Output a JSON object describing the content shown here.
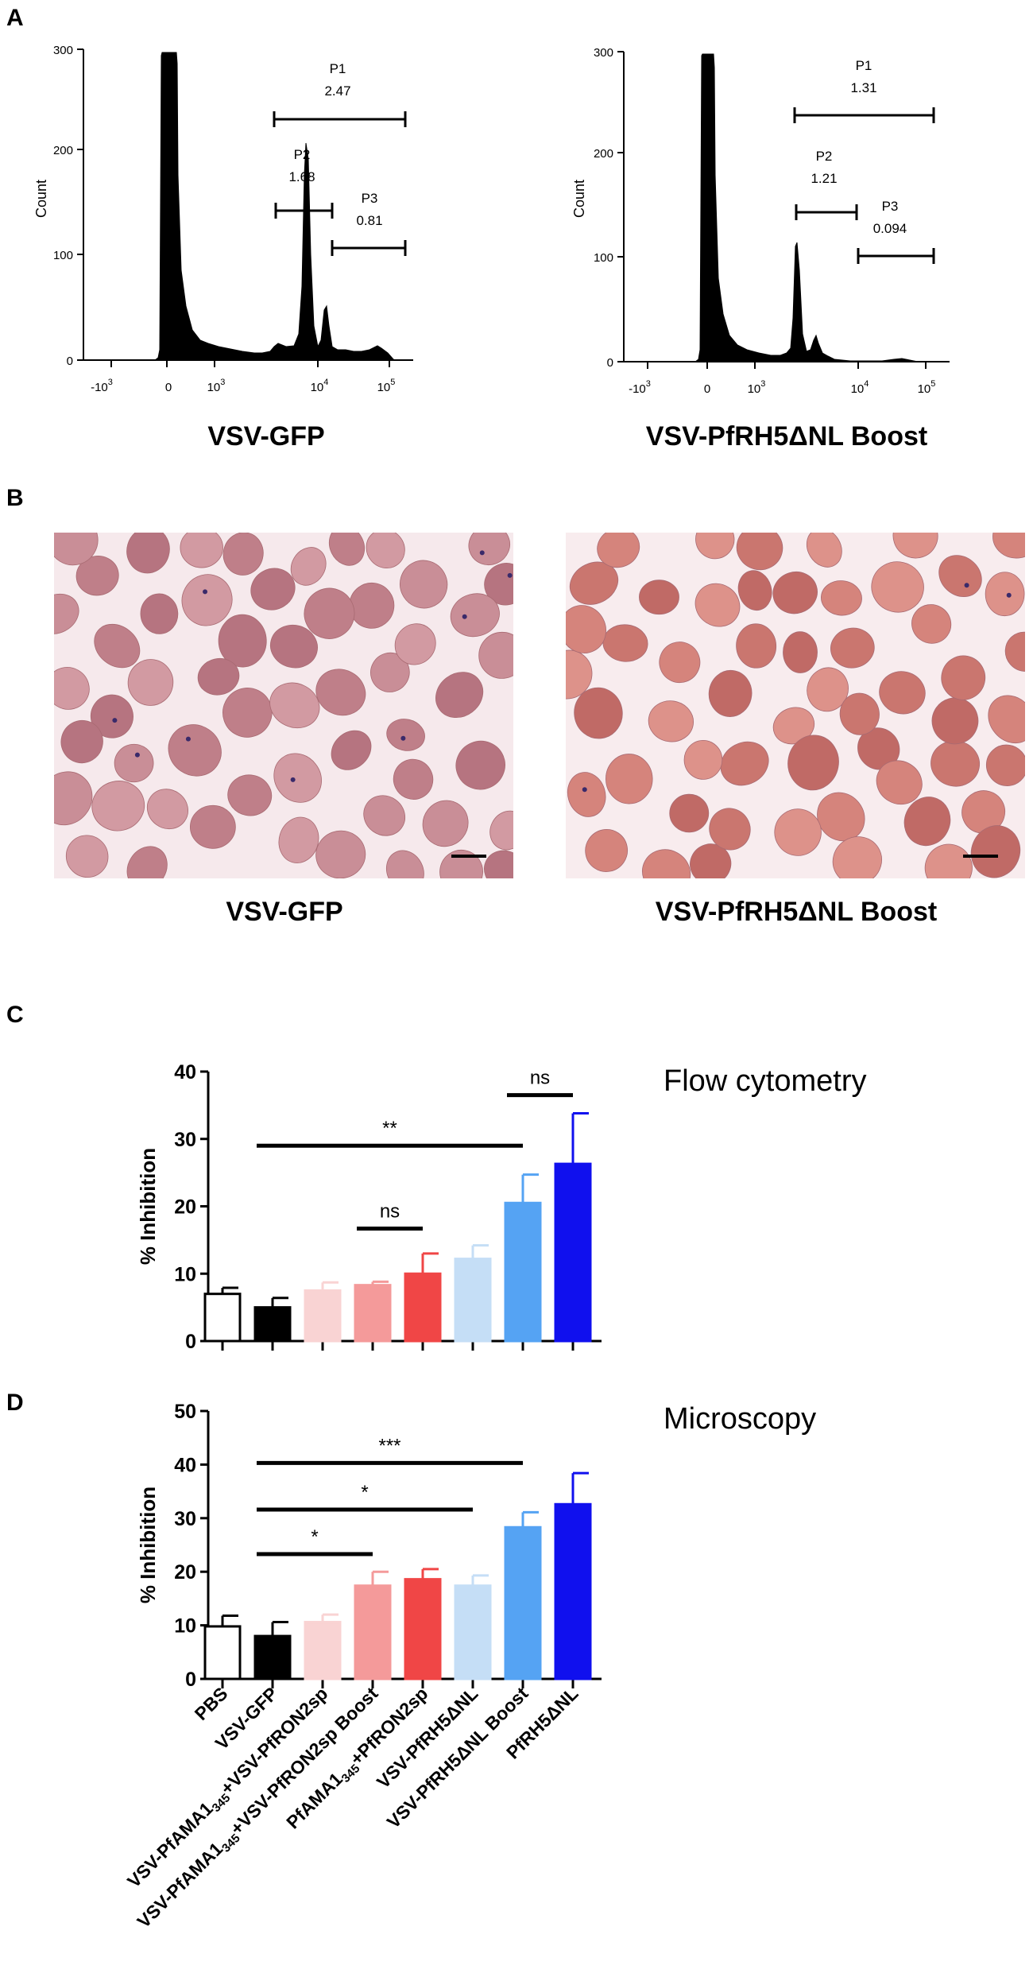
{
  "panels": {
    "A": {
      "letter": "A",
      "histograms": [
        {
          "caption": "VSV-GFP",
          "ylabel": "Count",
          "yticks": [
            "300",
            "200",
            "100",
            "0"
          ],
          "xticks": [
            "-10",
            "0",
            "10",
            "10",
            "10"
          ],
          "xtick_exps": [
            "3",
            "",
            "3",
            "4",
            "5"
          ],
          "gates": [
            {
              "name": "P1",
              "value": "2.47"
            },
            {
              "name": "P2",
              "value": "1.68"
            },
            {
              "name": "P3",
              "value": "0.81"
            }
          ]
        },
        {
          "caption": "VSV-PfRH5ΔNL Boost",
          "ylabel": "Count",
          "yticks": [
            "300",
            "200",
            "100",
            "0"
          ],
          "xticks": [
            "-10",
            "0",
            "10",
            "10",
            "10"
          ],
          "xtick_exps": [
            "3",
            "",
            "3",
            "4",
            "5"
          ],
          "gates": [
            {
              "name": "P1",
              "value": "1.31"
            },
            {
              "name": "P2",
              "value": "1.21"
            },
            {
              "name": "P3",
              "value": "0.094"
            }
          ]
        }
      ]
    },
    "B": {
      "letter": "B",
      "captions": [
        "VSV-GFP",
        "VSV-PfRH5ΔNL Boost"
      ]
    },
    "C": {
      "letter": "C"
    },
    "D": {
      "letter": "D"
    }
  },
  "chart_data": [
    {
      "type": "bar",
      "title": "Flow cytometry",
      "ylabel": "% Inhibition",
      "ylim": [
        0,
        40
      ],
      "yticks": [
        0,
        10,
        20,
        30,
        40
      ],
      "categories": [
        "PBS",
        "VSV-GFP",
        "VSV-PfAMA1345+VSV-PfRON2sp",
        "VSV-PfAMA1345+VSV-PfRON2sp Boost",
        "PfAMA1345+PfRON2sp",
        "VSV-PfRH5ΔNL",
        "VSV-PfRH5ΔNL Boost",
        "PfRH5ΔNL"
      ],
      "values": [
        7.0,
        5.0,
        7.5,
        8.3,
        10.0,
        12.2,
        20.5,
        26.3
      ],
      "errors": [
        0.9,
        1.4,
        1.2,
        0.5,
        3.0,
        2.0,
        4.2,
        7.5
      ],
      "colors": [
        "#ffffff",
        "#000000",
        "#f9d3d3",
        "#f49a9a",
        "#f04646",
        "#c5def6",
        "#55a3f3",
        "#1010ee"
      ],
      "significance": [
        {
          "label": "**",
          "from": 1,
          "to": 6,
          "y": 29.0
        },
        {
          "label": "ns",
          "from": 3,
          "to": 4,
          "y": 16.7
        },
        {
          "label": "ns",
          "from": 6,
          "to": 7,
          "y": 36.5
        }
      ]
    },
    {
      "type": "bar",
      "title": "Microscopy",
      "ylabel": "% Inhibition",
      "ylim": [
        0,
        50
      ],
      "yticks": [
        0,
        10,
        20,
        30,
        40,
        50
      ],
      "categories": [
        "PBS",
        "VSV-GFP",
        "VSV-PfAMA1345+VSV-PfRON2sp",
        "VSV-PfAMA1345+VSV-PfRON2sp Boost",
        "PfAMA1345+PfRON2sp",
        "VSV-PfRH5ΔNL",
        "VSV-PfRH5ΔNL Boost",
        "PfRH5ΔNL"
      ],
      "values": [
        9.8,
        8.0,
        10.6,
        17.4,
        18.6,
        17.4,
        28.3,
        32.6
      ],
      "errors": [
        2.0,
        2.6,
        1.4,
        2.6,
        1.9,
        1.9,
        2.8,
        5.8
      ],
      "colors": [
        "#ffffff",
        "#000000",
        "#f9d3d3",
        "#f49a9a",
        "#f04646",
        "#c5def6",
        "#55a3f3",
        "#1010ee"
      ],
      "significance": [
        {
          "label": "***",
          "from": 1,
          "to": 6,
          "y": 40.3
        },
        {
          "label": "*",
          "from": 1,
          "to": 5,
          "y": 31.6
        },
        {
          "label": "*",
          "from": 1,
          "to": 3,
          "y": 23.3
        }
      ]
    }
  ],
  "category_labels": [
    {
      "main": "PBS"
    },
    {
      "main": "VSV-GFP"
    },
    {
      "pre": "VSV-PfAMA1",
      "sub": "345",
      "post": "+VSV-PfRON2sp"
    },
    {
      "pre": "VSV-PfAMA1",
      "sub": "345",
      "post": "+VSV-PfRON2sp Boost"
    },
    {
      "pre": "PfAMA1",
      "sub": "345",
      "post": "+PfRON2sp"
    },
    {
      "main": "VSV-PfRH5ΔNL"
    },
    {
      "main": "VSV-PfRH5ΔNL Boost"
    },
    {
      "main": "PfRH5ΔNL"
    }
  ]
}
